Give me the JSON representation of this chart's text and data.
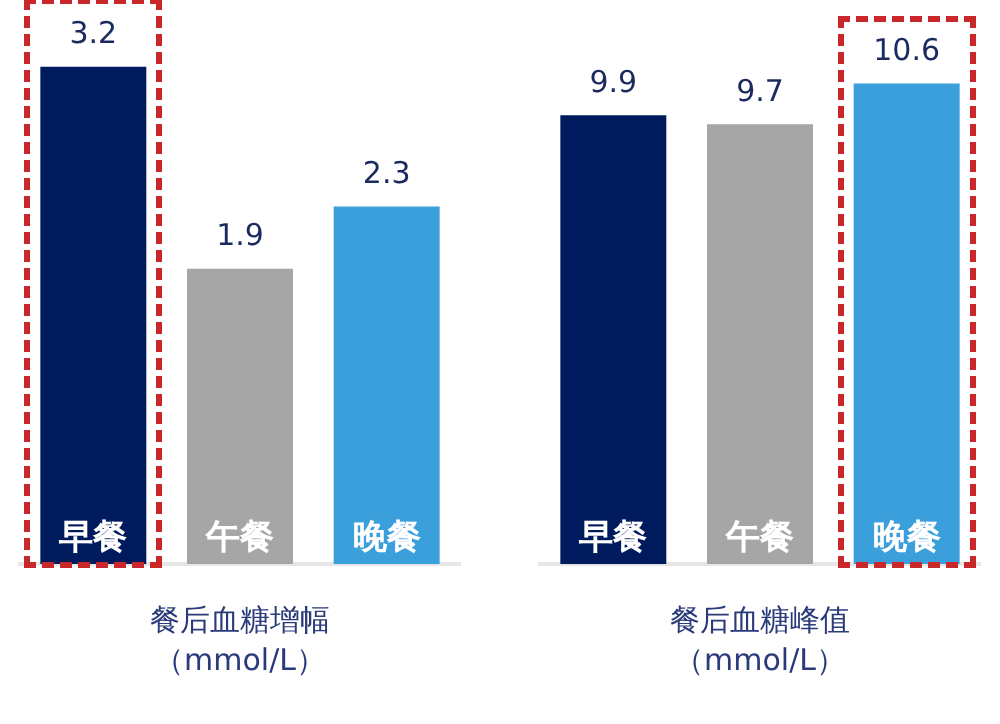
{
  "chart_data": [
    {
      "type": "bar",
      "xlabel": "餐后血糖增幅（mmol/L）",
      "categories": [
        "早餐",
        "午餐",
        "晚餐"
      ],
      "values": [
        3.2,
        1.9,
        2.3
      ],
      "colors": [
        "#001a5e",
        "#a6a6a6",
        "#3a9fdb"
      ],
      "tick_labels": "x",
      "grid": false,
      "legend": false,
      "data_labels": true
    },
    {
      "type": "bar",
      "xlabel": "餐后血糖峰值（mmol/L）",
      "categories": [
        "早餐",
        "午餐",
        "晚餐"
      ],
      "values": [
        9.9,
        9.7,
        10.6
      ],
      "colors": [
        "#001a5e",
        "#a6a6a6",
        "#3a9fdb"
      ],
      "tick_labels": "x",
      "grid": false,
      "legend": false,
      "data_labels": true
    }
  ]
}
